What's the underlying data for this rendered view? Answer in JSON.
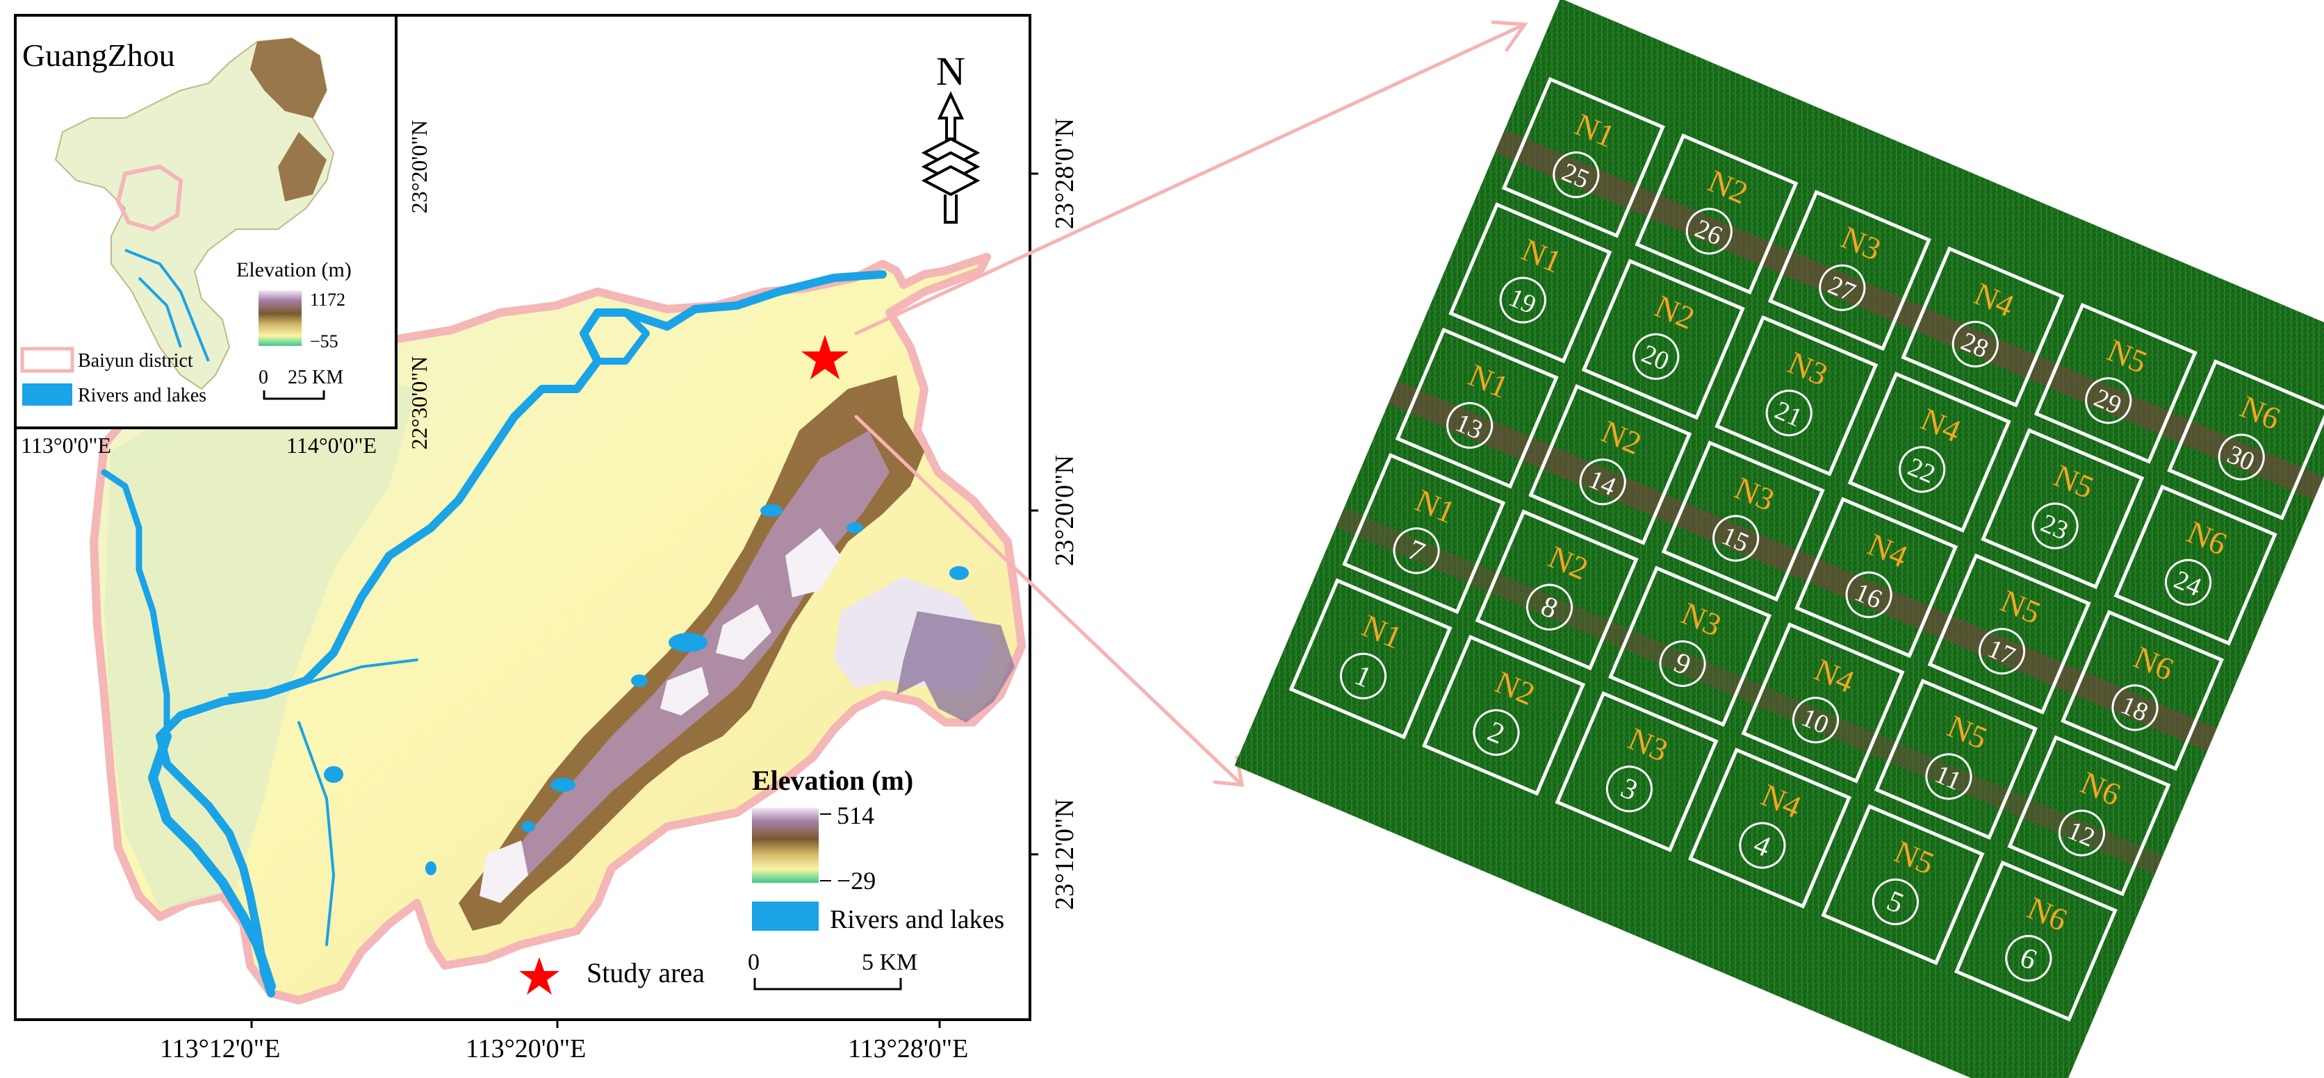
{
  "inset": {
    "title": "GuangZhou",
    "legend_title": "Elevation (m)",
    "elev_max": "1172",
    "elev_min": "−55",
    "district_label": "Baiyun district",
    "rivers_label": "Rivers and lakes",
    "scale_zero": "0",
    "scale_label": "25 KM",
    "lon_ticks": [
      "113°0'0\"E",
      "114°0'0\"E"
    ],
    "lat_ticks": [
      "23°20'0\"N",
      "22°30'0\"N"
    ]
  },
  "main_map": {
    "legend_title": "Elevation (m)",
    "elev_max": "514",
    "elev_min": "−29",
    "rivers_label": "Rivers and lakes",
    "study_area_label": "Study area",
    "scale_zero": "0",
    "scale_label": "5 KM",
    "north_letter": "N",
    "lon_ticks": [
      "113°12'0\"E",
      "113°20'0\"E",
      "113°28'0\"E"
    ],
    "lat_ticks": [
      "23°28'0\"N",
      "23°20'0\"N",
      "23°12'0\"N"
    ]
  },
  "colors": {
    "plot_border": "#ffffff",
    "treatment_label": "#f5a623",
    "plot_number": "#ffffff",
    "river": "#1aa3e6",
    "district_outline": "#f4b6b6",
    "study_star": "#ff0000",
    "callout_arrow": "#f7b3b3",
    "field_green": "#1d6b1d"
  },
  "plots": [
    {
      "t": "N1",
      "n": "1"
    },
    {
      "t": "N2",
      "n": "2"
    },
    {
      "t": "N3",
      "n": "3"
    },
    {
      "t": "N4",
      "n": "4"
    },
    {
      "t": "N5",
      "n": "5"
    },
    {
      "t": "N6",
      "n": "6"
    },
    {
      "t": "N1",
      "n": "7"
    },
    {
      "t": "N2",
      "n": "8"
    },
    {
      "t": "N3",
      "n": "9"
    },
    {
      "t": "N4",
      "n": "10"
    },
    {
      "t": "N5",
      "n": "11"
    },
    {
      "t": "N6",
      "n": "12"
    },
    {
      "t": "N1",
      "n": "13"
    },
    {
      "t": "N2",
      "n": "14"
    },
    {
      "t": "N3",
      "n": "15"
    },
    {
      "t": "N4",
      "n": "16"
    },
    {
      "t": "N5",
      "n": "17"
    },
    {
      "t": "N6",
      "n": "18"
    },
    {
      "t": "N1",
      "n": "19"
    },
    {
      "t": "N2",
      "n": "20"
    },
    {
      "t": "N3",
      "n": "21"
    },
    {
      "t": "N4",
      "n": "22"
    },
    {
      "t": "N5",
      "n": "23"
    },
    {
      "t": "N6",
      "n": "24"
    },
    {
      "t": "N1",
      "n": "25"
    },
    {
      "t": "N2",
      "n": "26"
    },
    {
      "t": "N3",
      "n": "27"
    },
    {
      "t": "N4",
      "n": "28"
    },
    {
      "t": "N5",
      "n": "29"
    },
    {
      "t": "N6",
      "n": "30"
    }
  ]
}
